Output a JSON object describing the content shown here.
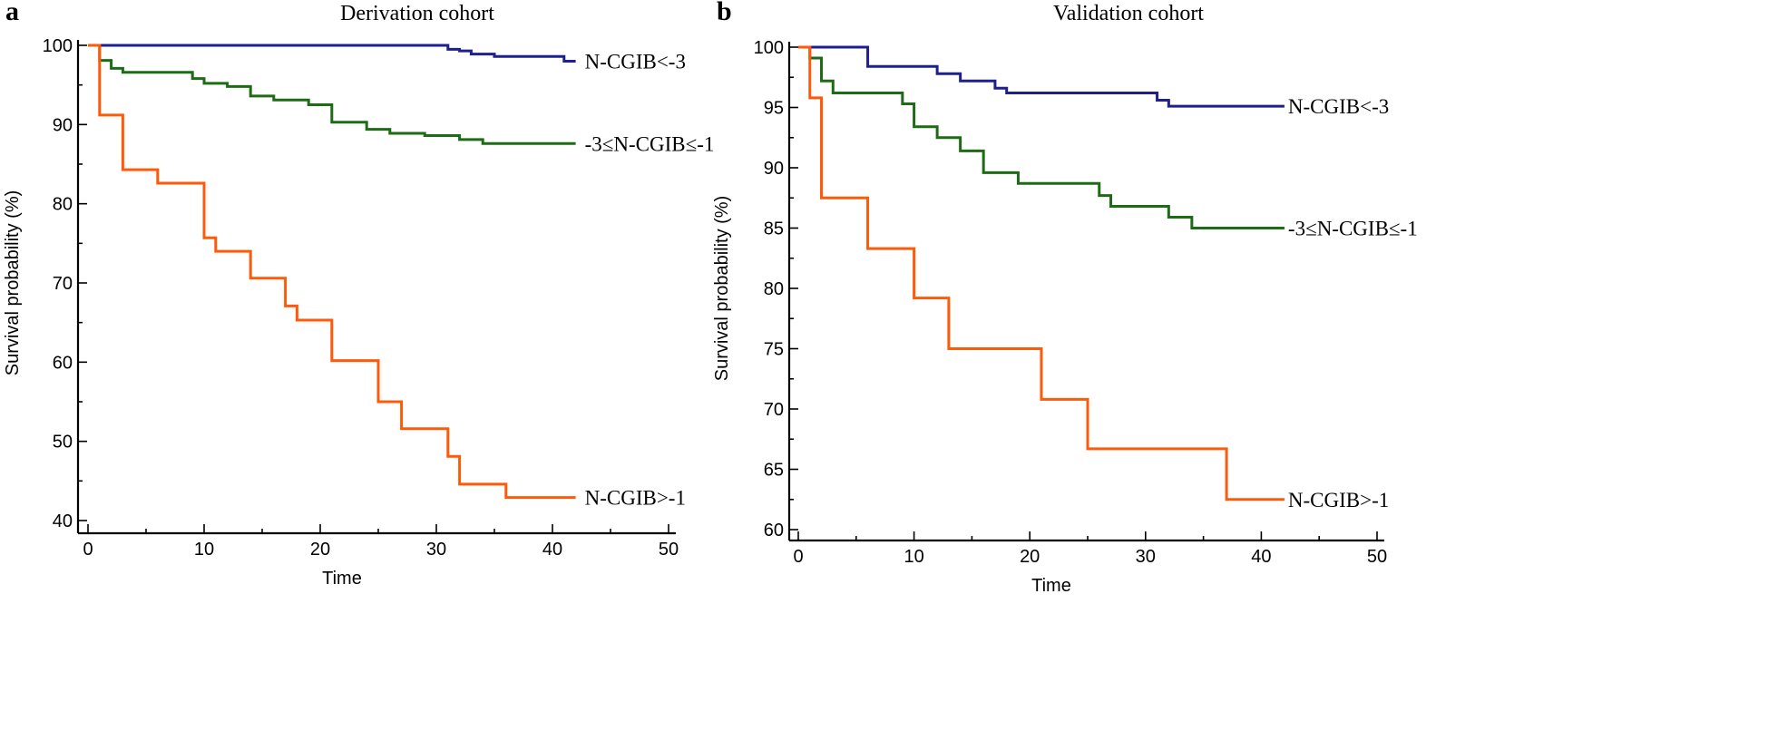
{
  "chart_data": [
    {
      "panel": "a",
      "type": "line",
      "step": true,
      "title": "Derivation  cohort",
      "xlabel": "Time",
      "ylabel": "Survival probability (%)",
      "xlim": [
        0,
        50
      ],
      "ylim": [
        40,
        100
      ],
      "xticks": [
        0,
        10,
        20,
        30,
        40,
        50
      ],
      "yticks": [
        40,
        50,
        60,
        70,
        80,
        90,
        100
      ],
      "series": [
        {
          "name": "N-CGIB<-3",
          "color": "#1f1f8f",
          "x": [
            0,
            31,
            32,
            33,
            35,
            41,
            42
          ],
          "y": [
            100,
            99.5,
            99.3,
            98.9,
            98.6,
            98.0,
            98.0
          ]
        },
        {
          "name": "-3≤N-CGIB≤-1",
          "color": "#1e6b16",
          "x": [
            0,
            1,
            2,
            3,
            9,
            10,
            12,
            14,
            16,
            19,
            21,
            24,
            26,
            29,
            32,
            34,
            42
          ],
          "y": [
            100,
            98.1,
            97.1,
            96.6,
            95.8,
            95.2,
            94.8,
            93.6,
            93.1,
            92.5,
            90.3,
            89.4,
            88.9,
            88.6,
            88.1,
            87.6,
            87.6
          ]
        },
        {
          "name": "N-CGIB>-1",
          "color": "#ff5a0a",
          "x": [
            0,
            1,
            3,
            6,
            10,
            11,
            14,
            17,
            18,
            21,
            25,
            27,
            31,
            32,
            36,
            42
          ],
          "y": [
            100,
            91.2,
            84.3,
            82.6,
            75.7,
            74.0,
            70.6,
            67.1,
            65.3,
            60.2,
            55.0,
            51.6,
            48.1,
            44.6,
            42.9,
            42.9
          ]
        }
      ]
    },
    {
      "panel": "b",
      "type": "line",
      "step": true,
      "title": "Validation cohort",
      "xlabel": "Time",
      "ylabel": "Survival probability (%)",
      "xlim": [
        0,
        50
      ],
      "ylim": [
        60,
        100
      ],
      "xticks": [
        0,
        10,
        20,
        30,
        40,
        50
      ],
      "yticks": [
        60,
        65,
        70,
        75,
        80,
        85,
        90,
        95,
        100
      ],
      "series": [
        {
          "name": "N-CGIB<-3",
          "color": "#1f1f8f",
          "x": [
            0,
            6,
            12,
            14,
            17,
            18,
            31,
            32,
            42
          ],
          "y": [
            100,
            98.4,
            97.8,
            97.2,
            96.6,
            96.2,
            95.6,
            95.1,
            95.1
          ]
        },
        {
          "name": "-3≤N-CGIB≤-1",
          "color": "#1e6b16",
          "x": [
            0,
            1,
            2,
            3,
            9,
            10,
            12,
            14,
            16,
            19,
            26,
            27,
            32,
            34,
            42
          ],
          "y": [
            100,
            99.1,
            97.2,
            96.2,
            95.3,
            93.4,
            92.5,
            91.4,
            89.6,
            88.7,
            87.7,
            86.8,
            85.9,
            85.0,
            85.0
          ]
        },
        {
          "name": "N-CGIB>-1",
          "color": "#ff5a0a",
          "x": [
            0,
            1,
            2,
            6,
            10,
            13,
            21,
            25,
            37,
            42
          ],
          "y": [
            100,
            95.8,
            87.5,
            83.3,
            79.2,
            75.0,
            70.8,
            66.7,
            62.5,
            62.5
          ]
        }
      ]
    }
  ]
}
